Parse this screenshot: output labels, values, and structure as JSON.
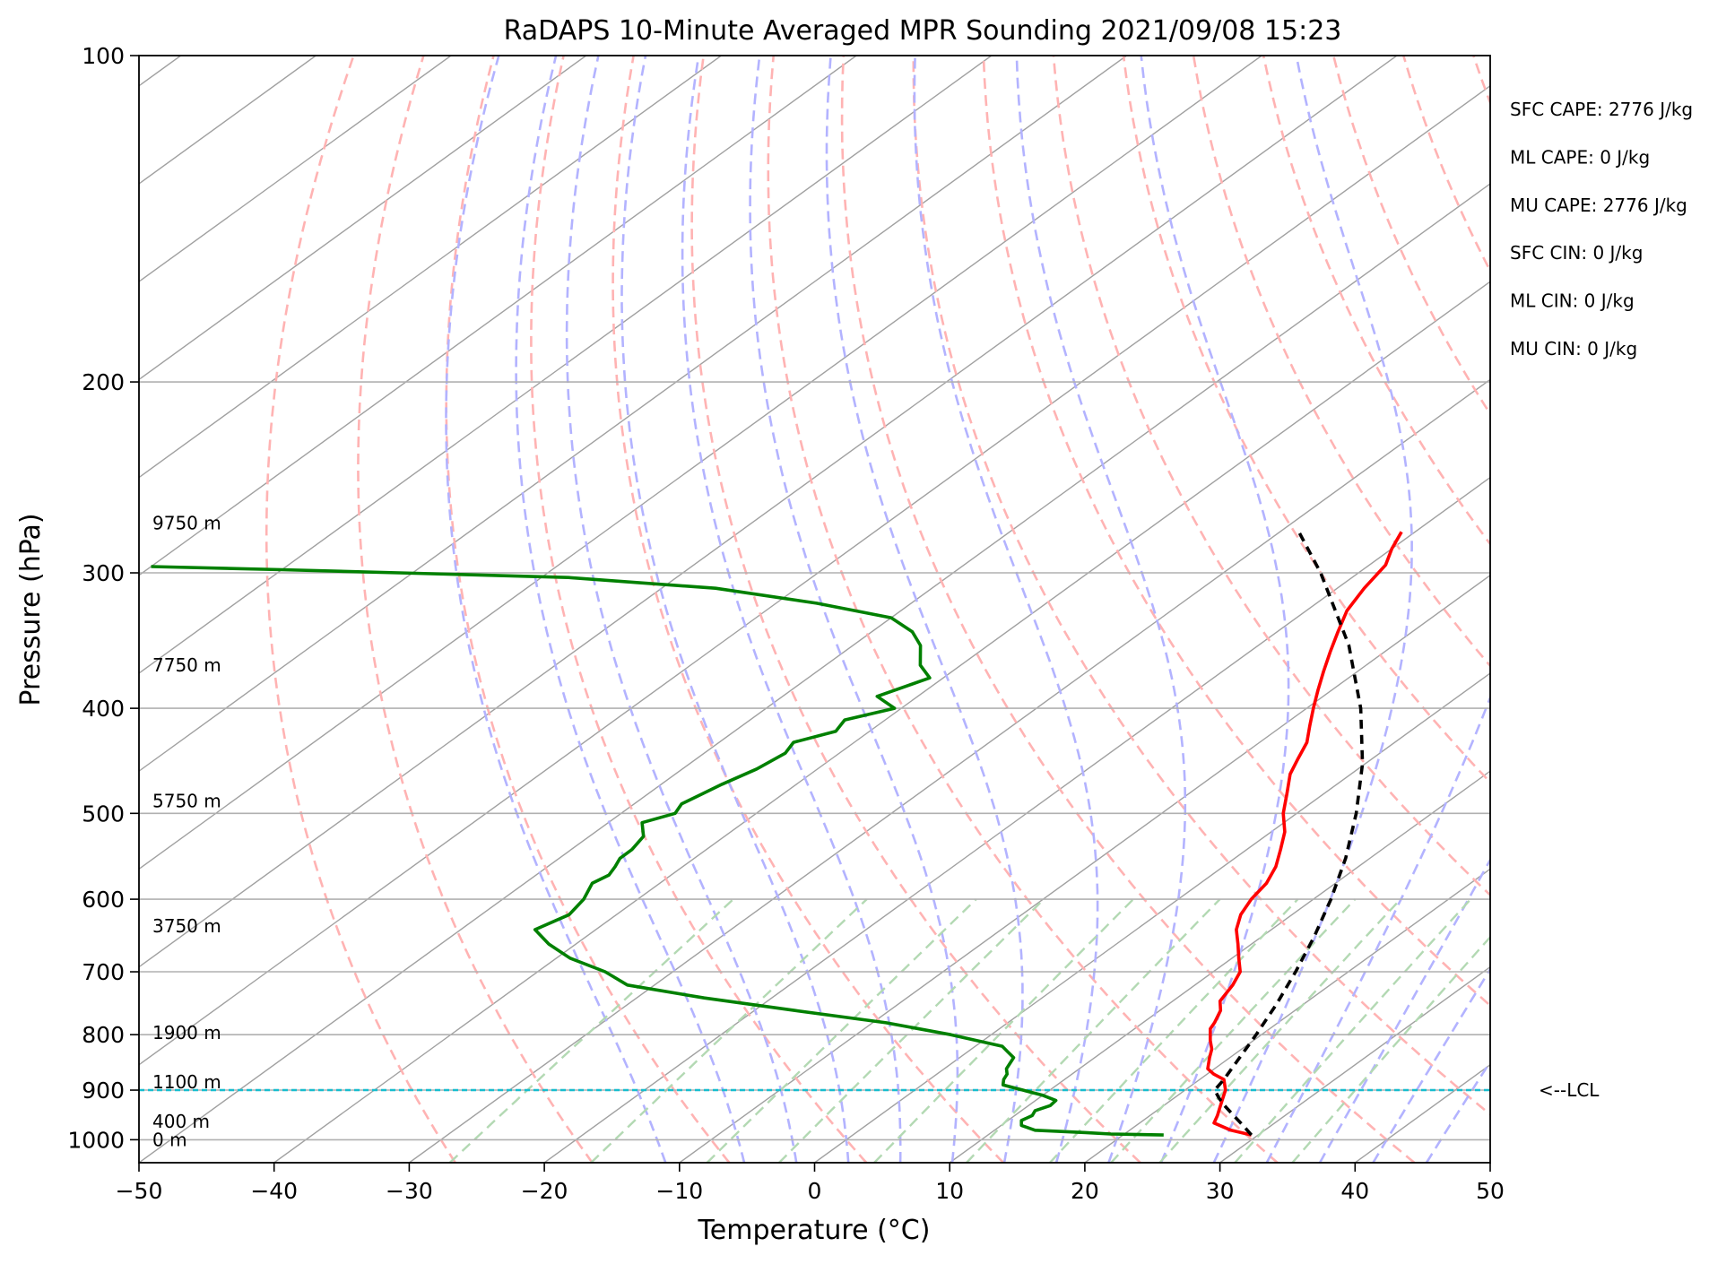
{
  "chart_data": {
    "type": "line",
    "subtype": "skew-t log-p",
    "title": "RaDAPS 10-Minute Averaged MPR Sounding 2021/09/08 15:23",
    "xlabel": "Temperature (°C)",
    "ylabel": "Pressure (hPa)",
    "xlim": [
      -50,
      50
    ],
    "ylim": [
      1050,
      100
    ],
    "y_scale": "log",
    "x_ticks": [
      -50,
      -40,
      -30,
      -20,
      -10,
      0,
      10,
      20,
      30,
      40,
      50
    ],
    "x_tick_labels": [
      "−50",
      "−40",
      "−30",
      "−20",
      "−10",
      "0",
      "10",
      "20",
      "30",
      "40",
      "50"
    ],
    "y_ticks": [
      100,
      200,
      300,
      400,
      500,
      600,
      700,
      800,
      900,
      1000
    ],
    "y_tick_labels": [
      "100",
      "200",
      "300",
      "400",
      "500",
      "600",
      "700",
      "800",
      "900",
      "1000"
    ],
    "grid": true,
    "background_lines": {
      "isotherm_color": "#a0a0a0",
      "dry_adiabat_color": "#ffb3b3",
      "moist_adiabat_color": "#b3b3ff",
      "mixing_ratio_color": "#b3d9b3",
      "dry_adiabats_theta_C": [
        -30,
        -20,
        -10,
        0,
        10,
        20,
        30,
        40,
        50,
        60,
        70,
        80,
        90,
        100,
        110,
        120,
        130,
        140,
        150,
        160,
        170,
        180,
        190,
        200
      ],
      "moist_adiabats_thetaw_C": [
        -14,
        -8,
        -4,
        0,
        4,
        8,
        12,
        16,
        20,
        24,
        28,
        32,
        36,
        40,
        44
      ],
      "mixing_ratios_gkg": [
        0.4,
        1,
        2,
        3,
        5,
        8,
        12,
        16,
        20,
        28,
        36
      ]
    },
    "series": [
      {
        "name": "temperature",
        "color": "#ff0000",
        "pressure": [
          990,
          980,
          965,
          950,
          935,
          920,
          900,
          880,
          870,
          860,
          850,
          840,
          825,
          810,
          790,
          780,
          760,
          745,
          720,
          700,
          680,
          660,
          640,
          620,
          600,
          580,
          560,
          540,
          520,
          500,
          480,
          460,
          445,
          430,
          415,
          400,
          385,
          370,
          355,
          340,
          325,
          310,
          295,
          285,
          275
        ],
        "values": [
          29.5,
          27.5,
          25.5,
          25.0,
          24.4,
          23.8,
          23.0,
          21.8,
          20.5,
          19.5,
          19.0,
          18.5,
          17.8,
          16.8,
          15.6,
          15.3,
          14.5,
          13.5,
          12.8,
          12.0,
          10.5,
          9.0,
          7.4,
          6.2,
          5.4,
          4.9,
          3.9,
          2.5,
          1.0,
          -1.0,
          -2.7,
          -4.5,
          -5.5,
          -6.5,
          -8.0,
          -9.5,
          -11.0,
          -12.5,
          -14.0,
          -15.5,
          -17.0,
          -18.0,
          -18.8,
          -20.0,
          -21.0
        ]
      },
      {
        "name": "dewpoint",
        "color": "#008000",
        "pressure": [
          990,
          988,
          985,
          980,
          970,
          960,
          950,
          940,
          930,
          920,
          910,
          900,
          890,
          880,
          870,
          860,
          850,
          840,
          830,
          820,
          800,
          780,
          760,
          740,
          720,
          700,
          680,
          660,
          640,
          620,
          600,
          580,
          570,
          560,
          550,
          540,
          525,
          510,
          500,
          490,
          480,
          470,
          455,
          440,
          430,
          420,
          410,
          400,
          390,
          375,
          365,
          350,
          340,
          330,
          320,
          310,
          303,
          300,
          298,
          296
        ],
        "values": [
          23.0,
          19.0,
          17.0,
          13.0,
          11.5,
          11.0,
          11.3,
          11.0,
          11.6,
          11.5,
          10.0,
          8.0,
          6.0,
          5.5,
          5.2,
          4.6,
          4.3,
          4.0,
          3.0,
          2.0,
          -3.0,
          -9.0,
          -17.0,
          -25.0,
          -32.0,
          -35.0,
          -39.0,
          -42.0,
          -44.5,
          -43.5,
          -44.0,
          -45.0,
          -44.6,
          -45.0,
          -45.5,
          -45.5,
          -46.0,
          -47.5,
          -46.0,
          -46.5,
          -46.0,
          -45.5,
          -44.5,
          -44.0,
          -44.5,
          -42.5,
          -43.0,
          -40.5,
          -43.0,
          -41.0,
          -43.0,
          -45.0,
          -47.0,
          -50.0,
          -57.0,
          -66.0,
          -78.0,
          -91.0,
          -100.0,
          -110.0
        ]
      },
      {
        "name": "parcel",
        "color": "#000000",
        "dashed": true,
        "pressure": [
          990,
          970,
          950,
          930,
          915,
          900,
          880,
          850,
          800,
          750,
          700,
          650,
          600,
          550,
          500,
          450,
          400,
          350,
          300,
          275
        ],
        "values": [
          29.5,
          27.9,
          26.2,
          24.5,
          23.3,
          22.2,
          21.8,
          21.0,
          19.6,
          18.0,
          16.1,
          13.9,
          11.3,
          8.2,
          4.4,
          -0.2,
          -6.0,
          -13.3,
          -22.8,
          -28.6
        ]
      }
    ],
    "lcl_pressure": 900,
    "lcl_label": "<--LCL",
    "lcl_line_color": "#17becf",
    "height_labels": [
      {
        "text": "9750 m",
        "pressure": 270
      },
      {
        "text": "7750 m",
        "pressure": 365
      },
      {
        "text": "5750 m",
        "pressure": 487
      },
      {
        "text": "3750 m",
        "pressure": 635
      },
      {
        "text": "1900 m",
        "pressure": 797
      },
      {
        "text": "1100 m",
        "pressure": 885
      },
      {
        "text": "400 m",
        "pressure": 962
      },
      {
        "text": "0 m",
        "pressure": 1000
      }
    ],
    "annotations": [
      "SFC CAPE: 2776 J/kg",
      "ML CAPE: 0 J/kg",
      "MU CAPE: 2776 J/kg",
      "SFC CIN: 0 J/kg",
      "ML CIN: 0 J/kg",
      "MU CIN: 0 J/kg"
    ]
  }
}
